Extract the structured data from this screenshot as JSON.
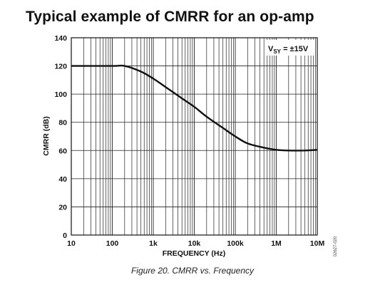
{
  "header": {
    "title": "Typical example of CMRR for an op-amp"
  },
  "caption": "Figure 20. CMRR vs. Frequency",
  "doc_code": "02627-020",
  "colors": {
    "curve": "#111111",
    "grid": "#222222",
    "text": "#111111"
  },
  "chart_data": {
    "type": "line",
    "title": "",
    "xlabel": "FREQUENCY (Hz)",
    "ylabel": "CMRR (dB)",
    "x_scale": "log",
    "xlim": [
      10,
      10000000
    ],
    "ylim": [
      0,
      140
    ],
    "x_ticks": [
      10,
      100,
      1000,
      10000,
      100000,
      1000000,
      10000000
    ],
    "x_tick_labels": [
      "10",
      "100",
      "1k",
      "10k",
      "100k",
      "1M",
      "10M"
    ],
    "y_ticks": [
      0,
      20,
      40,
      60,
      80,
      100,
      120,
      140
    ],
    "y_tick_labels": [
      "0",
      "20",
      "40",
      "60",
      "80",
      "100",
      "120",
      "140"
    ],
    "grid": true,
    "legend_position": "top-right",
    "annotation": {
      "main": "V",
      "sub": "SY",
      "rest": " = ±15V"
    },
    "series": [
      {
        "x": [
          10,
          100,
          200,
          500,
          1000,
          2000,
          5000,
          10000,
          20000,
          50000,
          100000,
          200000,
          500000,
          1000000,
          2000000,
          5000000,
          10000000
        ],
        "y": [
          120,
          120,
          120,
          116,
          111,
          105,
          97,
          91,
          84,
          76,
          70,
          65,
          62,
          60.5,
          60,
          60,
          60.5
        ]
      }
    ]
  }
}
